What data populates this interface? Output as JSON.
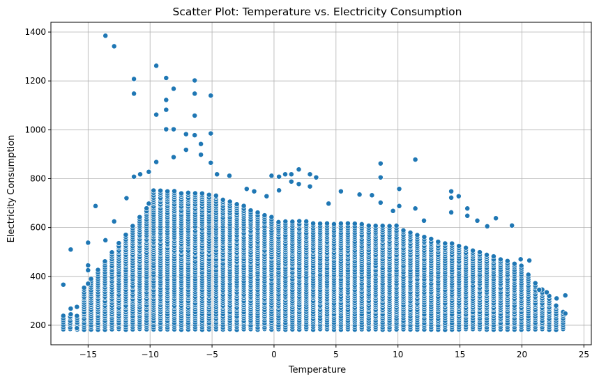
{
  "chart_data": {
    "type": "scatter",
    "title": "Scatter Plot: Temperature vs. Electricity Consumption",
    "xlabel": "Temperature",
    "ylabel": "Electricity Consumption",
    "xlim": [
      -18,
      25.6
    ],
    "ylim": [
      120,
      1440
    ],
    "xticks": [
      -15,
      -10,
      -5,
      0,
      5,
      10,
      15,
      20,
      25
    ],
    "yticks": [
      200,
      400,
      600,
      800,
      1000,
      1200,
      1400
    ],
    "grid": true,
    "marker_color": "#1f77b4",
    "marker_edge_color": "#ffffff",
    "x_step": 0.56,
    "x_range": [
      -17,
      23.6
    ],
    "y_floor": 183,
    "outliers": [
      [
        -17.0,
        366
      ],
      [
        -16.4,
        510
      ],
      [
        -16.4,
        268
      ],
      [
        -16.4,
        245
      ],
      [
        -15.9,
        275
      ],
      [
        -15.9,
        238
      ],
      [
        -15.9,
        188
      ],
      [
        -15.0,
        538
      ],
      [
        -15.0,
        445
      ],
      [
        -15.0,
        425
      ],
      [
        -15.0,
        370
      ],
      [
        -14.4,
        688
      ],
      [
        -13.6,
        1385
      ],
      [
        -13.6,
        548
      ],
      [
        -12.9,
        1342
      ],
      [
        -12.9,
        625
      ],
      [
        -11.9,
        720
      ],
      [
        -11.3,
        1208
      ],
      [
        -11.3,
        1148
      ],
      [
        -11.3,
        808
      ],
      [
        -10.8,
        818
      ],
      [
        -10.1,
        828
      ],
      [
        -10.1,
        698
      ],
      [
        -9.5,
        1262
      ],
      [
        -9.5,
        1062
      ],
      [
        -9.5,
        868
      ],
      [
        -8.7,
        1212
      ],
      [
        -8.7,
        1122
      ],
      [
        -8.7,
        1082
      ],
      [
        -8.7,
        1002
      ],
      [
        -8.1,
        1168
      ],
      [
        -8.1,
        1002
      ],
      [
        -8.1,
        888
      ],
      [
        -7.1,
        982
      ],
      [
        -7.1,
        918
      ],
      [
        -6.4,
        1202
      ],
      [
        -6.4,
        1148
      ],
      [
        -6.4,
        1058
      ],
      [
        -6.4,
        978
      ],
      [
        -5.9,
        942
      ],
      [
        -5.9,
        898
      ],
      [
        -5.1,
        1140
      ],
      [
        -5.1,
        985
      ],
      [
        -5.1,
        865
      ],
      [
        -4.6,
        818
      ],
      [
        -3.6,
        812
      ],
      [
        -2.2,
        758
      ],
      [
        -1.6,
        748
      ],
      [
        -0.6,
        728
      ],
      [
        -0.2,
        812
      ],
      [
        0.4,
        808
      ],
      [
        0.4,
        752
      ],
      [
        0.9,
        818
      ],
      [
        1.4,
        818
      ],
      [
        1.4,
        788
      ],
      [
        2.0,
        838
      ],
      [
        2.0,
        778
      ],
      [
        2.9,
        818
      ],
      [
        2.9,
        768
      ],
      [
        3.4,
        805
      ],
      [
        4.4,
        698
      ],
      [
        5.4,
        748
      ],
      [
        6.9,
        735
      ],
      [
        7.9,
        732
      ],
      [
        8.6,
        862
      ],
      [
        8.6,
        805
      ],
      [
        8.6,
        702
      ],
      [
        9.6,
        668
      ],
      [
        10.1,
        758
      ],
      [
        10.1,
        688
      ],
      [
        11.4,
        878
      ],
      [
        11.4,
        678
      ],
      [
        12.1,
        628
      ],
      [
        14.3,
        748
      ],
      [
        14.3,
        722
      ],
      [
        14.3,
        662
      ],
      [
        14.9,
        728
      ],
      [
        15.6,
        678
      ],
      [
        15.6,
        648
      ],
      [
        16.4,
        628
      ],
      [
        17.2,
        605
      ],
      [
        17.9,
        638
      ],
      [
        19.2,
        608
      ],
      [
        19.9,
        470
      ],
      [
        20.6,
        465
      ],
      [
        21.4,
        345
      ],
      [
        22.0,
        335
      ],
      [
        22.8,
        310
      ],
      [
        23.5,
        322
      ],
      [
        23.5,
        248
      ]
    ]
  }
}
